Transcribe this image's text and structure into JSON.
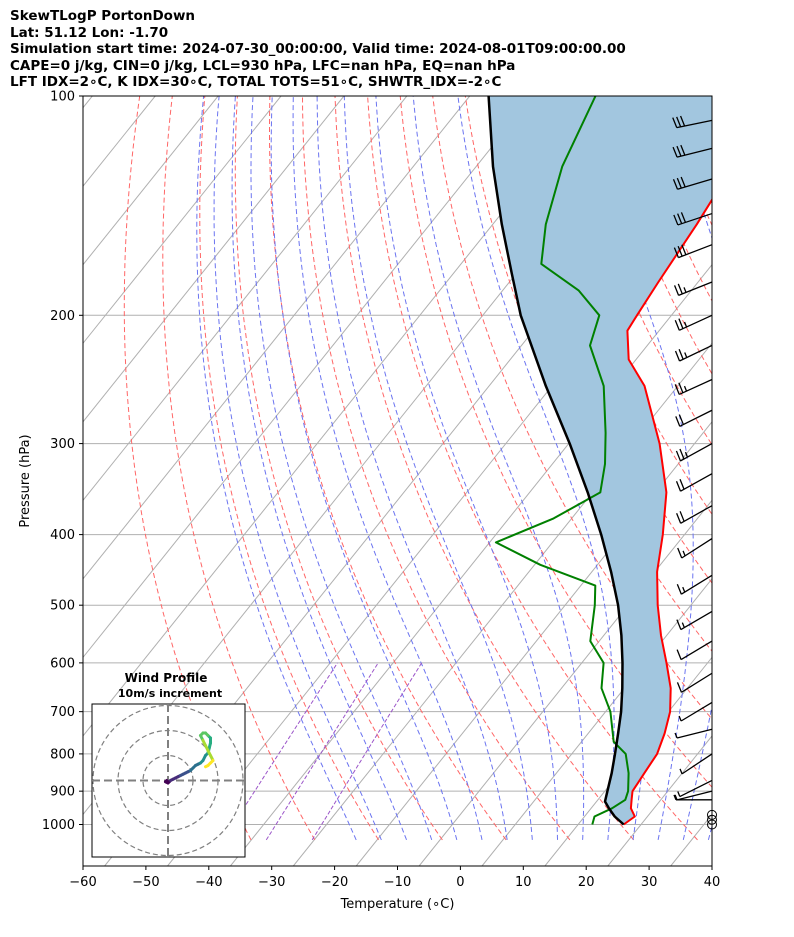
{
  "header": {
    "lines": [
      "SkewTLogP PortonDown",
      "Lat: 51.12   Lon: -1.70",
      "Simulation start time: 2024-07-30_00:00:00, Valid time: 2024-08-01T09:00:00.00",
      "CAPE=0 j/kg, CIN=0 j/kg, LCL=930 hPa, LFC=nan hPa, EQ=nan hPa",
      "LFT IDX=2∘C, K IDX=30∘C, TOTAL TOTS=51∘C, SHWTR_IDX=-2∘C"
    ]
  },
  "chart_data": {
    "type": "line",
    "xlabel": "Temperature (∘C)",
    "ylabel": "Pressure (hPa)",
    "xlim": [
      -60,
      40
    ],
    "ylim": [
      1050,
      100
    ],
    "y_scale": "log",
    "x_ticks": [
      -60,
      -50,
      -40,
      -30,
      -20,
      -10,
      0,
      10,
      20,
      30,
      40
    ],
    "y_ticks": [
      100,
      200,
      300,
      400,
      500,
      600,
      700,
      800,
      900,
      1000
    ],
    "grid": true,
    "colors": {
      "temperature": "#ff0000",
      "dewpoint": "#008000",
      "parcel": "#000000",
      "cape_fill": "#a2c6df",
      "dry_adiabats": "#ff6666",
      "moist_adiabats": "#6b74f0",
      "mixing_ratio": "#9b55c9",
      "isotherms": "#b0b0b0"
    },
    "series": [
      {
        "key": "temperature",
        "points": [
          [
            1000,
            20.5
          ],
          [
            975,
            21.2
          ],
          [
            950,
            19.5
          ],
          [
            925,
            18.5
          ],
          [
            900,
            17.5
          ],
          [
            850,
            17.0
          ],
          [
            800,
            16.5
          ],
          [
            750,
            15.0
          ],
          [
            700,
            13.0
          ],
          [
            650,
            10.0
          ],
          [
            600,
            6.0
          ],
          [
            550,
            1.5
          ],
          [
            500,
            -3.0
          ],
          [
            450,
            -7.5
          ],
          [
            400,
            -11.5
          ],
          [
            350,
            -16.5
          ],
          [
            300,
            -24.0
          ],
          [
            250,
            -34.0
          ],
          [
            230,
            -40.0
          ],
          [
            210,
            -44.0
          ],
          [
            200,
            -44.5
          ],
          [
            180,
            -45.5
          ],
          [
            150,
            -47.0
          ],
          [
            130,
            -48.5
          ],
          [
            110,
            -49.5
          ],
          [
            100,
            -50.5
          ]
        ]
      },
      {
        "key": "dewpoint",
        "points": [
          [
            1000,
            15.5
          ],
          [
            975,
            14.8
          ],
          [
            950,
            16.5
          ],
          [
            925,
            17.5
          ],
          [
            900,
            16.8
          ],
          [
            850,
            14.5
          ],
          [
            800,
            11.5
          ],
          [
            770,
            8.0
          ],
          [
            700,
            3.5
          ],
          [
            650,
            -1.0
          ],
          [
            600,
            -4.0
          ],
          [
            560,
            -9.0
          ],
          [
            500,
            -13.0
          ],
          [
            470,
            -15.5
          ],
          [
            440,
            -27.0
          ],
          [
            410,
            -37.0
          ],
          [
            380,
            -31.0
          ],
          [
            350,
            -27.0
          ],
          [
            320,
            -30.0
          ],
          [
            290,
            -34.0
          ],
          [
            250,
            -40.5
          ],
          [
            220,
            -48.0
          ],
          [
            200,
            -50.5
          ],
          [
            185,
            -57.0
          ],
          [
            170,
            -66.5
          ],
          [
            150,
            -71.0
          ],
          [
            125,
            -76.0
          ],
          [
            100,
            -80.0
          ]
        ]
      },
      {
        "key": "parcel",
        "points": [
          [
            1000,
            20.5
          ],
          [
            975,
            18.0
          ],
          [
            950,
            16.0
          ],
          [
            930,
            14.5
          ],
          [
            900,
            13.5
          ],
          [
            850,
            11.8
          ],
          [
            800,
            9.8
          ],
          [
            750,
            7.6
          ],
          [
            700,
            5.2
          ],
          [
            650,
            2.3
          ],
          [
            600,
            -1.0
          ],
          [
            550,
            -4.8
          ],
          [
            500,
            -9.3
          ],
          [
            450,
            -14.8
          ],
          [
            400,
            -21.3
          ],
          [
            350,
            -29.0
          ],
          [
            300,
            -38.3
          ],
          [
            250,
            -49.7
          ],
          [
            200,
            -63.0
          ],
          [
            175,
            -70.0
          ],
          [
            150,
            -78.0
          ],
          [
            125,
            -87.0
          ],
          [
            100,
            -97.0
          ]
        ]
      }
    ],
    "wind_barbs": [
      {
        "p": 1000,
        "calm": true
      },
      {
        "p": 985,
        "calm": true
      },
      {
        "p": 970,
        "calm": true
      },
      {
        "p": 925,
        "u": 5,
        "v": 0
      },
      {
        "p": 900,
        "u": 4,
        "v": 1
      },
      {
        "p": 870,
        "u": 4,
        "v": 2
      },
      {
        "p": 800,
        "u": 6,
        "v": 4
      },
      {
        "p": 740,
        "u": 4,
        "v": 1
      },
      {
        "p": 680,
        "u": 5,
        "v": 3
      },
      {
        "p": 620,
        "u": 8,
        "v": 5
      },
      {
        "p": 560,
        "u": 10,
        "v": 6
      },
      {
        "p": 510,
        "u": 12,
        "v": 7
      },
      {
        "p": 455,
        "u": 13,
        "v": 8
      },
      {
        "p": 405,
        "u": 14,
        "v": 9
      },
      {
        "p": 365,
        "u": 16,
        "v": 9
      },
      {
        "p": 330,
        "u": 18,
        "v": 10
      },
      {
        "p": 300,
        "u": 20,
        "v": 11
      },
      {
        "p": 270,
        "u": 20,
        "v": 10
      },
      {
        "p": 245,
        "u": 22,
        "v": 10
      },
      {
        "p": 220,
        "u": 23,
        "v": 11
      },
      {
        "p": 200,
        "u": 24,
        "v": 11
      },
      {
        "p": 180,
        "u": 25,
        "v": 10
      },
      {
        "p": 160,
        "u": 26,
        "v": 10
      },
      {
        "p": 145,
        "u": 27,
        "v": 9
      },
      {
        "p": 130,
        "u": 27,
        "v": 8
      },
      {
        "p": 118,
        "u": 28,
        "v": 7
      },
      {
        "p": 108,
        "u": 29,
        "v": 6
      }
    ],
    "hodograph": {
      "title": "Wind Profile",
      "subtitle": "10m/s increment",
      "rings": [
        10,
        20,
        30
      ],
      "points": [
        [
          -0.5,
          0
        ],
        [
          -1,
          -0.5
        ],
        [
          0,
          -1
        ],
        [
          0.5,
          -0.5
        ],
        [
          1,
          0
        ],
        [
          2,
          0.5
        ],
        [
          3,
          1
        ],
        [
          4,
          1.5
        ],
        [
          5,
          2
        ],
        [
          6,
          2.5
        ],
        [
          7,
          3
        ],
        [
          8,
          3.5
        ],
        [
          9,
          4
        ],
        [
          10,
          5
        ],
        [
          11,
          6
        ],
        [
          12,
          6.5
        ],
        [
          13,
          7
        ],
        [
          14,
          8
        ],
        [
          15,
          10
        ],
        [
          16,
          11
        ],
        [
          16.5,
          13
        ],
        [
          17,
          15
        ],
        [
          17,
          17
        ],
        [
          16,
          18
        ],
        [
          15,
          19
        ],
        [
          14,
          19
        ],
        [
          13,
          18
        ],
        [
          14,
          16
        ],
        [
          15,
          14
        ],
        [
          16,
          12
        ],
        [
          17,
          10
        ],
        [
          18,
          8
        ],
        [
          17,
          7
        ],
        [
          16,
          6
        ],
        [
          15,
          5.5
        ]
      ]
    }
  }
}
